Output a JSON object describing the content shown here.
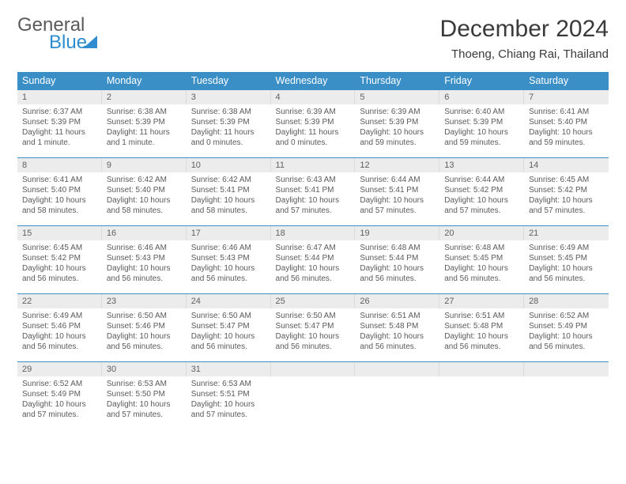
{
  "logo": {
    "part1": "General",
    "part2": "Blue"
  },
  "title": "December 2024",
  "subtitle": "Thoeng, Chiang Rai, Thailand",
  "colors": {
    "header_blue": "#3b8fc7",
    "row_separator": "#3b8fc7",
    "daynum_bg": "#ececec",
    "text_dark": "#424242",
    "text_gray": "#5a5a5a",
    "logo_blue": "#2e8ccf",
    "background": "#ffffff"
  },
  "weekdays": [
    "Sunday",
    "Monday",
    "Tuesday",
    "Wednesday",
    "Thursday",
    "Friday",
    "Saturday"
  ],
  "weeks": [
    [
      {
        "n": "1",
        "sr": "Sunrise: 6:37 AM",
        "ss": "Sunset: 5:39 PM",
        "dl": "Daylight: 11 hours and 1 minute."
      },
      {
        "n": "2",
        "sr": "Sunrise: 6:38 AM",
        "ss": "Sunset: 5:39 PM",
        "dl": "Daylight: 11 hours and 1 minute."
      },
      {
        "n": "3",
        "sr": "Sunrise: 6:38 AM",
        "ss": "Sunset: 5:39 PM",
        "dl": "Daylight: 11 hours and 0 minutes."
      },
      {
        "n": "4",
        "sr": "Sunrise: 6:39 AM",
        "ss": "Sunset: 5:39 PM",
        "dl": "Daylight: 11 hours and 0 minutes."
      },
      {
        "n": "5",
        "sr": "Sunrise: 6:39 AM",
        "ss": "Sunset: 5:39 PM",
        "dl": "Daylight: 10 hours and 59 minutes."
      },
      {
        "n": "6",
        "sr": "Sunrise: 6:40 AM",
        "ss": "Sunset: 5:39 PM",
        "dl": "Daylight: 10 hours and 59 minutes."
      },
      {
        "n": "7",
        "sr": "Sunrise: 6:41 AM",
        "ss": "Sunset: 5:40 PM",
        "dl": "Daylight: 10 hours and 59 minutes."
      }
    ],
    [
      {
        "n": "8",
        "sr": "Sunrise: 6:41 AM",
        "ss": "Sunset: 5:40 PM",
        "dl": "Daylight: 10 hours and 58 minutes."
      },
      {
        "n": "9",
        "sr": "Sunrise: 6:42 AM",
        "ss": "Sunset: 5:40 PM",
        "dl": "Daylight: 10 hours and 58 minutes."
      },
      {
        "n": "10",
        "sr": "Sunrise: 6:42 AM",
        "ss": "Sunset: 5:41 PM",
        "dl": "Daylight: 10 hours and 58 minutes."
      },
      {
        "n": "11",
        "sr": "Sunrise: 6:43 AM",
        "ss": "Sunset: 5:41 PM",
        "dl": "Daylight: 10 hours and 57 minutes."
      },
      {
        "n": "12",
        "sr": "Sunrise: 6:44 AM",
        "ss": "Sunset: 5:41 PM",
        "dl": "Daylight: 10 hours and 57 minutes."
      },
      {
        "n": "13",
        "sr": "Sunrise: 6:44 AM",
        "ss": "Sunset: 5:42 PM",
        "dl": "Daylight: 10 hours and 57 minutes."
      },
      {
        "n": "14",
        "sr": "Sunrise: 6:45 AM",
        "ss": "Sunset: 5:42 PM",
        "dl": "Daylight: 10 hours and 57 minutes."
      }
    ],
    [
      {
        "n": "15",
        "sr": "Sunrise: 6:45 AM",
        "ss": "Sunset: 5:42 PM",
        "dl": "Daylight: 10 hours and 56 minutes."
      },
      {
        "n": "16",
        "sr": "Sunrise: 6:46 AM",
        "ss": "Sunset: 5:43 PM",
        "dl": "Daylight: 10 hours and 56 minutes."
      },
      {
        "n": "17",
        "sr": "Sunrise: 6:46 AM",
        "ss": "Sunset: 5:43 PM",
        "dl": "Daylight: 10 hours and 56 minutes."
      },
      {
        "n": "18",
        "sr": "Sunrise: 6:47 AM",
        "ss": "Sunset: 5:44 PM",
        "dl": "Daylight: 10 hours and 56 minutes."
      },
      {
        "n": "19",
        "sr": "Sunrise: 6:48 AM",
        "ss": "Sunset: 5:44 PM",
        "dl": "Daylight: 10 hours and 56 minutes."
      },
      {
        "n": "20",
        "sr": "Sunrise: 6:48 AM",
        "ss": "Sunset: 5:45 PM",
        "dl": "Daylight: 10 hours and 56 minutes."
      },
      {
        "n": "21",
        "sr": "Sunrise: 6:49 AM",
        "ss": "Sunset: 5:45 PM",
        "dl": "Daylight: 10 hours and 56 minutes."
      }
    ],
    [
      {
        "n": "22",
        "sr": "Sunrise: 6:49 AM",
        "ss": "Sunset: 5:46 PM",
        "dl": "Daylight: 10 hours and 56 minutes."
      },
      {
        "n": "23",
        "sr": "Sunrise: 6:50 AM",
        "ss": "Sunset: 5:46 PM",
        "dl": "Daylight: 10 hours and 56 minutes."
      },
      {
        "n": "24",
        "sr": "Sunrise: 6:50 AM",
        "ss": "Sunset: 5:47 PM",
        "dl": "Daylight: 10 hours and 56 minutes."
      },
      {
        "n": "25",
        "sr": "Sunrise: 6:50 AM",
        "ss": "Sunset: 5:47 PM",
        "dl": "Daylight: 10 hours and 56 minutes."
      },
      {
        "n": "26",
        "sr": "Sunrise: 6:51 AM",
        "ss": "Sunset: 5:48 PM",
        "dl": "Daylight: 10 hours and 56 minutes."
      },
      {
        "n": "27",
        "sr": "Sunrise: 6:51 AM",
        "ss": "Sunset: 5:48 PM",
        "dl": "Daylight: 10 hours and 56 minutes."
      },
      {
        "n": "28",
        "sr": "Sunrise: 6:52 AM",
        "ss": "Sunset: 5:49 PM",
        "dl": "Daylight: 10 hours and 56 minutes."
      }
    ],
    [
      {
        "n": "29",
        "sr": "Sunrise: 6:52 AM",
        "ss": "Sunset: 5:49 PM",
        "dl": "Daylight: 10 hours and 57 minutes."
      },
      {
        "n": "30",
        "sr": "Sunrise: 6:53 AM",
        "ss": "Sunset: 5:50 PM",
        "dl": "Daylight: 10 hours and 57 minutes."
      },
      {
        "n": "31",
        "sr": "Sunrise: 6:53 AM",
        "ss": "Sunset: 5:51 PM",
        "dl": "Daylight: 10 hours and 57 minutes."
      },
      null,
      null,
      null,
      null
    ]
  ]
}
